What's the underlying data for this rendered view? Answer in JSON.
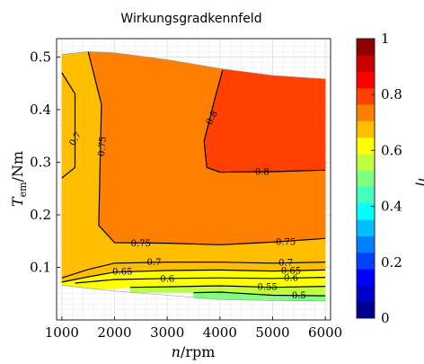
{
  "chart_data": {
    "type": "heatmap",
    "title": "Wirkungsgradkennfeld",
    "xlabel": "n/rpm",
    "ylabel": "T_em/Nm",
    "colorbar_label": "η",
    "xlim": [
      900,
      6100
    ],
    "ylim": [
      0,
      0.535
    ],
    "xticks": [
      1000,
      2000,
      3000,
      4000,
      5000,
      6000
    ],
    "yticks": [
      0.1,
      0.2,
      0.3,
      0.4,
      0.5
    ],
    "clim": [
      0,
      1
    ],
    "cticks": [
      0,
      0.2,
      0.4,
      0.6,
      0.8,
      1
    ],
    "grid": true,
    "colormap": [
      "#00008f",
      "#0000c8",
      "#0000ff",
      "#0040ff",
      "#0080ff",
      "#00bfff",
      "#00ffff",
      "#40ffbf",
      "#80ff80",
      "#bfff40",
      "#ffff00",
      "#ffbf00",
      "#ff8000",
      "#ff4000",
      "#ff0000",
      "#c80000",
      "#8f0000"
    ],
    "contours": [
      {
        "level": 0.7,
        "label": "0.7",
        "points": [
          [
            1000,
            0.47
          ],
          [
            1250,
            0.43
          ],
          [
            1250,
            0.29
          ],
          [
            1000,
            0.27
          ]
        ]
      },
      {
        "level": 0.75,
        "label": "0.75",
        "points": [
          [
            1500,
            0.51
          ],
          [
            1750,
            0.41
          ],
          [
            1700,
            0.18
          ],
          [
            2000,
            0.147
          ],
          [
            3000,
            0.146
          ],
          [
            4000,
            0.143
          ],
          [
            5000,
            0.148
          ],
          [
            6000,
            0.155
          ]
        ]
      },
      {
        "level": 0.8,
        "label": "0.8",
        "points": [
          [
            4050,
            0.475
          ],
          [
            3900,
            0.42
          ],
          [
            3700,
            0.34
          ],
          [
            3750,
            0.29
          ],
          [
            4000,
            0.281
          ],
          [
            5000,
            0.282
          ],
          [
            6000,
            0.285
          ]
        ]
      },
      {
        "level": 0.7,
        "label": "0.7",
        "points": [
          [
            1000,
            0.08
          ],
          [
            1500,
            0.096
          ],
          [
            2000,
            0.108
          ],
          [
            3000,
            0.11
          ],
          [
            4000,
            0.11
          ],
          [
            5000,
            0.108
          ],
          [
            6000,
            0.11
          ]
        ]
      },
      {
        "level": 0.65,
        "label": "0.65",
        "points": [
          [
            1000,
            0.072
          ],
          [
            1500,
            0.082
          ],
          [
            2000,
            0.091
          ],
          [
            3000,
            0.094
          ],
          [
            4000,
            0.095
          ],
          [
            5000,
            0.093
          ],
          [
            6000,
            0.095
          ]
        ]
      },
      {
        "level": 0.6,
        "label": "0.6",
        "points": [
          [
            1250,
            0.07
          ],
          [
            2000,
            0.077
          ],
          [
            3000,
            0.079
          ],
          [
            4000,
            0.08
          ],
          [
            5000,
            0.079
          ],
          [
            6000,
            0.081
          ]
        ]
      },
      {
        "level": 0.55,
        "label": "0.55",
        "points": [
          [
            2300,
            0.062
          ],
          [
            3000,
            0.063
          ],
          [
            4000,
            0.065
          ],
          [
            5000,
            0.062
          ],
          [
            6000,
            0.064
          ]
        ]
      },
      {
        "level": 0.5,
        "label": "0.5",
        "points": [
          [
            3500,
            0.052
          ],
          [
            4000,
            0.053
          ],
          [
            5000,
            0.047
          ],
          [
            6000,
            0.046
          ]
        ]
      }
    ],
    "contour_labels": [
      {
        "text": "0.7",
        "x": 1250,
        "y": 0.345,
        "angle": -60
      },
      {
        "text": "0.75",
        "x": 1760,
        "y": 0.33,
        "angle": -85
      },
      {
        "text": "0.8",
        "x": 3840,
        "y": 0.385,
        "angle": -62
      },
      {
        "text": "0.8",
        "x": 4800,
        "y": 0.282,
        "angle": 0
      },
      {
        "text": "0.75",
        "x": 2500,
        "y": 0.146,
        "angle": 0
      },
      {
        "text": "0.75",
        "x": 5250,
        "y": 0.149,
        "angle": 0
      },
      {
        "text": "0.7",
        "x": 2750,
        "y": 0.11,
        "angle": 0
      },
      {
        "text": "0.7",
        "x": 5250,
        "y": 0.109,
        "angle": 0
      },
      {
        "text": "0.65",
        "x": 2150,
        "y": 0.092,
        "angle": 0
      },
      {
        "text": "0.65",
        "x": 5350,
        "y": 0.094,
        "angle": 0
      },
      {
        "text": "0.6",
        "x": 3000,
        "y": 0.079,
        "angle": 0
      },
      {
        "text": "0.6",
        "x": 5350,
        "y": 0.08,
        "angle": 0
      },
      {
        "text": "0.55",
        "x": 4900,
        "y": 0.063,
        "angle": 0
      },
      {
        "text": "0.5",
        "x": 5500,
        "y": 0.047,
        "angle": 0
      }
    ],
    "regions": [
      {
        "color": "#ffbf00",
        "points": [
          [
            1000,
            0.505
          ],
          [
            1500,
            0.51
          ],
          [
            1750,
            0.41
          ],
          [
            1700,
            0.18
          ],
          [
            2000,
            0.147
          ],
          [
            3000,
            0.146
          ],
          [
            4000,
            0.143
          ],
          [
            5000,
            0.148
          ],
          [
            6000,
            0.155
          ],
          [
            6000,
            0.11
          ],
          [
            5000,
            0.108
          ],
          [
            4000,
            0.11
          ],
          [
            3000,
            0.11
          ],
          [
            2000,
            0.108
          ],
          [
            1500,
            0.096
          ],
          [
            1000,
            0.08
          ]
        ]
      },
      {
        "color": "#ff8000",
        "points": [
          [
            1500,
            0.51
          ],
          [
            2000,
            0.508
          ],
          [
            3000,
            0.495
          ],
          [
            4000,
            0.478
          ],
          [
            5000,
            0.465
          ],
          [
            6000,
            0.458
          ],
          [
            6000,
            0.155
          ],
          [
            5000,
            0.148
          ],
          [
            4000,
            0.143
          ],
          [
            3000,
            0.146
          ],
          [
            2000,
            0.147
          ],
          [
            1700,
            0.18
          ],
          [
            1750,
            0.41
          ]
        ]
      },
      {
        "color": "#ff4000",
        "points": [
          [
            4050,
            0.476
          ],
          [
            5000,
            0.465
          ],
          [
            6000,
            0.458
          ],
          [
            6000,
            0.285
          ],
          [
            5000,
            0.282
          ],
          [
            4000,
            0.281
          ],
          [
            3750,
            0.29
          ],
          [
            3700,
            0.34
          ],
          [
            3900,
            0.42
          ]
        ]
      },
      {
        "color": "#ffbf00",
        "points": [
          [
            1000,
            0.08
          ],
          [
            1500,
            0.096
          ],
          [
            2000,
            0.108
          ],
          [
            3000,
            0.11
          ],
          [
            4000,
            0.11
          ],
          [
            5000,
            0.108
          ],
          [
            6000,
            0.11
          ],
          [
            6000,
            0.095
          ],
          [
            5000,
            0.093
          ],
          [
            4000,
            0.095
          ],
          [
            3000,
            0.094
          ],
          [
            2000,
            0.091
          ],
          [
            1500,
            0.082
          ],
          [
            1000,
            0.072
          ]
        ]
      },
      {
        "color": "#ffff00",
        "points": [
          [
            1000,
            0.072
          ],
          [
            1500,
            0.082
          ],
          [
            2000,
            0.091
          ],
          [
            3000,
            0.094
          ],
          [
            4000,
            0.095
          ],
          [
            5000,
            0.093
          ],
          [
            6000,
            0.095
          ],
          [
            6000,
            0.064
          ],
          [
            5000,
            0.062
          ],
          [
            4000,
            0.065
          ],
          [
            3000,
            0.063
          ],
          [
            2300,
            0.062
          ],
          [
            1700,
            0.058
          ],
          [
            1000,
            0.066
          ]
        ]
      },
      {
        "color": "#bfff40",
        "points": [
          [
            2300,
            0.062
          ],
          [
            3000,
            0.063
          ],
          [
            4000,
            0.065
          ],
          [
            5000,
            0.062
          ],
          [
            6000,
            0.064
          ],
          [
            6000,
            0.046
          ],
          [
            5000,
            0.047
          ],
          [
            4000,
            0.053
          ],
          [
            3500,
            0.052
          ],
          [
            2300,
            0.052
          ]
        ]
      },
      {
        "color": "#80ff80",
        "points": [
          [
            3500,
            0.052
          ],
          [
            4000,
            0.053
          ],
          [
            5000,
            0.047
          ],
          [
            6000,
            0.046
          ],
          [
            6000,
            0.036
          ],
          [
            4000,
            0.039
          ],
          [
            3500,
            0.042
          ]
        ]
      }
    ],
    "boundary": {
      "top": [
        [
          1000,
          0.505
        ],
        [
          1500,
          0.51
        ],
        [
          2000,
          0.508
        ],
        [
          3000,
          0.495
        ],
        [
          4000,
          0.478
        ],
        [
          5000,
          0.465
        ],
        [
          6000,
          0.458
        ]
      ],
      "bottom": [
        [
          1000,
          0.066
        ],
        [
          2000,
          0.055
        ],
        [
          3000,
          0.047
        ],
        [
          4000,
          0.039
        ],
        [
          5000,
          0.037
        ],
        [
          6000,
          0.036
        ]
      ]
    }
  }
}
